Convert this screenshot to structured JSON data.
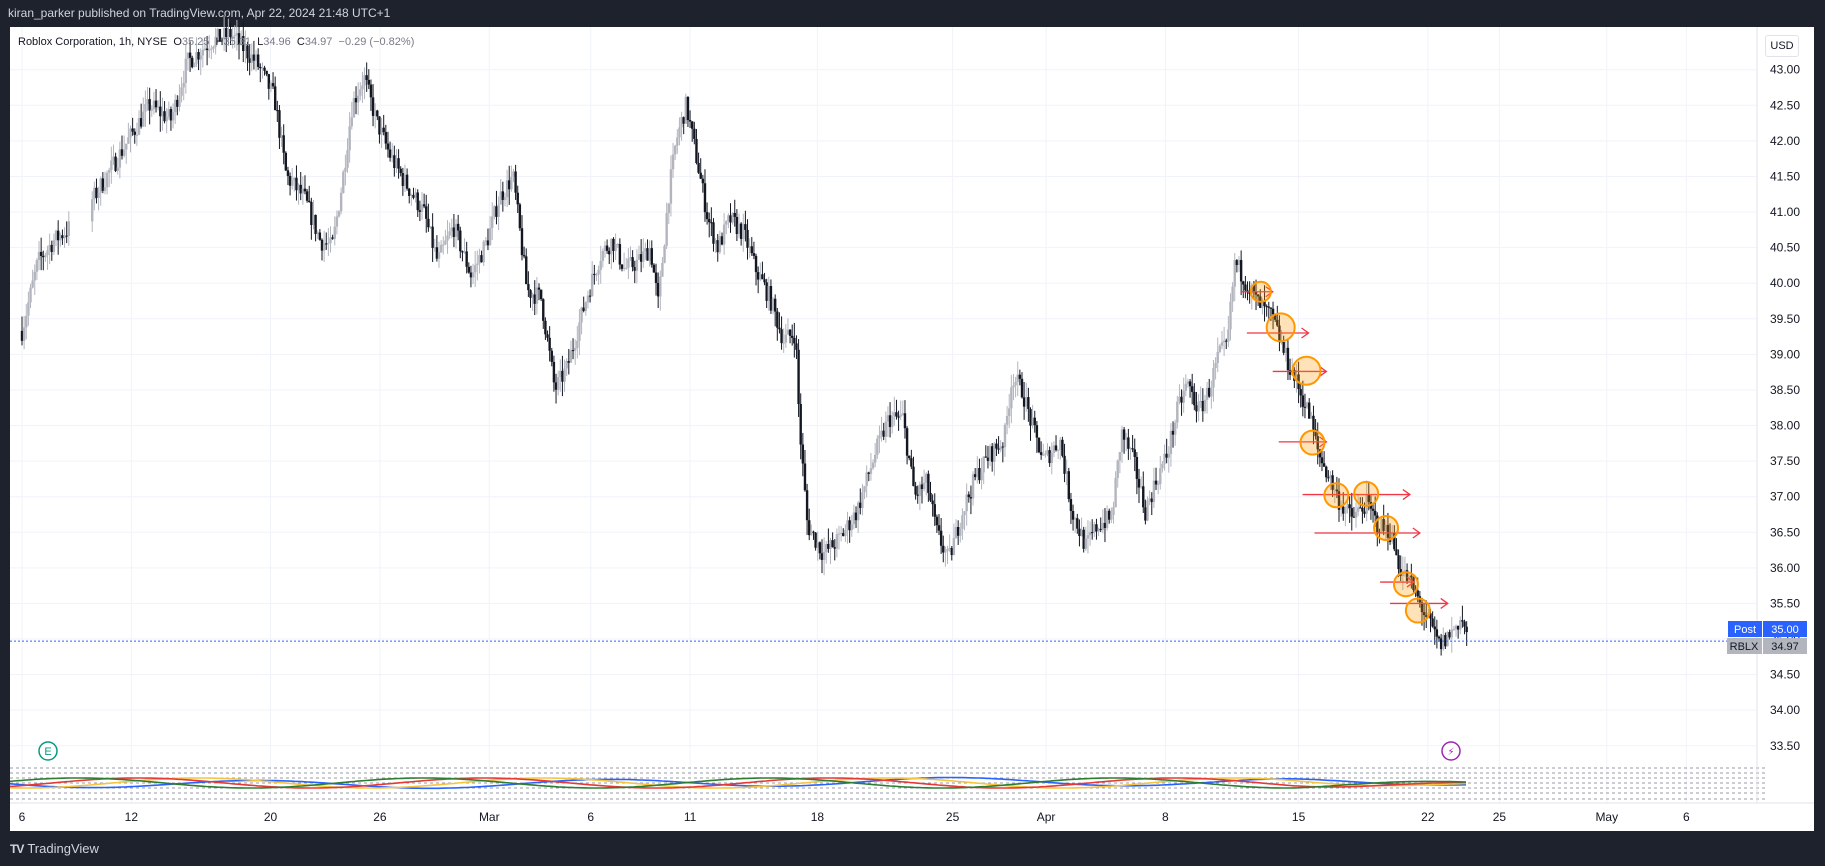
{
  "header": {
    "publisher": "kiran_parker published on TradingView.com, Apr 22, 2024 21:48 UTC+1"
  },
  "footer": {
    "brand": "TradingView"
  },
  "legend": {
    "symbol": "Roblox Corporation, 1h, NYSE",
    "o_label": "O",
    "o_value": "35.25",
    "h_label": "H",
    "h_value": "35.31",
    "l_label": "L",
    "l_value": "34.96",
    "c_label": "C",
    "c_value": "34.97",
    "change": "−0.29 (−0.82%)"
  },
  "currency": "USD",
  "badges": {
    "post_label": "Post",
    "post_value": "35.00",
    "ticker_label": "RBLX",
    "ticker_value": "34.97",
    "post_color": "#2962ff",
    "ticker_color": "#b2b5be"
  },
  "markers": {
    "earnings": "E",
    "dividend": "⚡"
  },
  "chart_data": {
    "type": "candlestick",
    "symbol": "RBLX",
    "interval": "1h",
    "ylim": [
      33.3,
      43.6
    ],
    "y_ticks": [
      "33.50",
      "34.00",
      "34.50",
      "35.00",
      "35.50",
      "36.00",
      "36.50",
      "37.00",
      "37.50",
      "38.00",
      "38.50",
      "39.00",
      "39.50",
      "40.00",
      "40.50",
      "41.00",
      "41.50",
      "42.00",
      "42.50",
      "43.00"
    ],
    "x_ticks": [
      "6",
      "12",
      "20",
      "26",
      "Mar",
      "6",
      "11",
      "18",
      "25",
      "Apr",
      "8",
      "15",
      "22",
      "25",
      "May",
      "6"
    ],
    "x_tick_index": [
      0,
      5.5,
      12.5,
      18,
      23.5,
      28.6,
      33.6,
      40,
      46.8,
      51.5,
      57.5,
      64.2,
      70.7,
      74.3,
      79.7,
      83.7
    ],
    "x_domain": [
      0,
      86.5
    ],
    "last_price": 34.97,
    "close_path": [
      [
        0,
        39.33
      ],
      [
        0.8,
        40.3
      ],
      [
        1.6,
        40.6
      ],
      [
        2.3,
        40.75
      ],
      [
        3.6,
        41.2
      ],
      [
        6.4,
        42.5
      ],
      [
        7.5,
        42.3
      ],
      [
        8.3,
        43.1
      ],
      [
        9.5,
        43.4
      ],
      [
        10.5,
        43.5
      ],
      [
        11.8,
        43.1
      ],
      [
        12.7,
        42.6
      ],
      [
        13.3,
        41.5
      ],
      [
        14.2,
        41.2
      ],
      [
        15.0,
        40.6
      ],
      [
        15.6,
        40.5
      ],
      [
        16.1,
        41.4
      ],
      [
        16.6,
        42.5
      ],
      [
        17.2,
        42.9
      ],
      [
        17.8,
        42.3
      ],
      [
        18.5,
        41.8
      ],
      [
        19.3,
        41.4
      ],
      [
        20.2,
        41.0
      ],
      [
        20.9,
        40.3
      ],
      [
        21.7,
        40.8
      ],
      [
        22.6,
        40.1
      ],
      [
        23.4,
        40.6
      ],
      [
        24.0,
        41.2
      ],
      [
        24.7,
        41.5
      ],
      [
        25.4,
        39.9
      ],
      [
        26.1,
        39.8
      ],
      [
        26.8,
        38.5
      ],
      [
        27.4,
        38.8
      ],
      [
        28.0,
        39.4
      ],
      [
        28.5,
        39.9
      ],
      [
        29.1,
        40.4
      ],
      [
        29.7,
        40.6
      ],
      [
        30.3,
        40.2
      ],
      [
        31.0,
        40.3
      ],
      [
        31.6,
        40.5
      ],
      [
        32.0,
        39.7
      ],
      [
        32.5,
        41.2
      ],
      [
        32.9,
        42.0
      ],
      [
        33.4,
        42.5
      ],
      [
        33.9,
        41.8
      ],
      [
        34.5,
        40.9
      ],
      [
        35.0,
        40.5
      ],
      [
        35.6,
        40.9
      ],
      [
        36.3,
        40.7
      ],
      [
        36.9,
        40.2
      ],
      [
        37.6,
        39.8
      ],
      [
        38.3,
        39.2
      ],
      [
        38.9,
        39.3
      ],
      [
        39.1,
        38.0
      ],
      [
        39.5,
        36.6
      ],
      [
        40.3,
        36.2
      ],
      [
        41.1,
        36.4
      ],
      [
        42.0,
        36.8
      ],
      [
        42.9,
        37.6
      ],
      [
        43.6,
        38.1
      ],
      [
        44.3,
        38.1
      ],
      [
        44.9,
        37.0
      ],
      [
        45.5,
        37.2
      ],
      [
        46.0,
        36.5
      ],
      [
        46.6,
        36.1
      ],
      [
        47.3,
        36.8
      ],
      [
        48.0,
        37.3
      ],
      [
        48.7,
        37.6
      ],
      [
        49.4,
        37.8
      ],
      [
        49.8,
        38.7
      ],
      [
        50.3,
        38.5
      ],
      [
        50.9,
        37.9
      ],
      [
        51.4,
        37.5
      ],
      [
        52.2,
        37.8
      ],
      [
        52.8,
        36.8
      ],
      [
        53.5,
        36.3
      ],
      [
        54.1,
        36.6
      ],
      [
        54.8,
        36.7
      ],
      [
        55.3,
        37.9
      ],
      [
        55.9,
        37.5
      ],
      [
        56.5,
        36.8
      ],
      [
        57.0,
        37.2
      ],
      [
        57.6,
        37.6
      ],
      [
        58.1,
        38.2
      ],
      [
        58.6,
        38.6
      ],
      [
        59.2,
        38.2
      ],
      [
        59.7,
        38.5
      ],
      [
        60.2,
        39.0
      ],
      [
        60.6,
        39.1
      ],
      [
        61.0,
        40.3
      ],
      [
        61.6,
        40.0
      ],
      [
        62.2,
        39.7
      ],
      [
        62.9,
        39.5
      ],
      [
        63.5,
        39.0
      ],
      [
        64.1,
        38.6
      ],
      [
        64.8,
        38.1
      ],
      [
        65.2,
        37.6
      ],
      [
        65.7,
        37.3
      ],
      [
        66.3,
        36.9
      ],
      [
        66.9,
        36.7
      ],
      [
        67.6,
        36.9
      ],
      [
        68.2,
        36.6
      ],
      [
        68.8,
        36.5
      ],
      [
        69.3,
        36.0
      ],
      [
        69.8,
        35.8
      ],
      [
        70.3,
        35.5
      ],
      [
        70.8,
        35.2
      ],
      [
        71.3,
        34.9
      ],
      [
        71.9,
        35.1
      ],
      [
        72.4,
        35.3
      ],
      [
        72.7,
        34.97
      ]
    ],
    "annotations": {
      "circles": [
        [
          62.3,
          39.88
        ],
        [
          63.3,
          39.38
        ],
        [
          64.6,
          38.77
        ],
        [
          64.9,
          37.76
        ],
        [
          66.1,
          37.02
        ],
        [
          67.6,
          37.04
        ],
        [
          68.6,
          36.56
        ],
        [
          69.6,
          35.77
        ],
        [
          70.2,
          35.4
        ]
      ],
      "arrows": [
        [
          61.3,
          62.9,
          39.88
        ],
        [
          61.6,
          64.7,
          39.3
        ],
        [
          62.9,
          65.6,
          38.76
        ],
        [
          63.2,
          65.6,
          37.77
        ],
        [
          64.4,
          69.8,
          37.03
        ],
        [
          65.0,
          70.3,
          36.49
        ],
        [
          68.3,
          70.0,
          35.8
        ],
        [
          68.8,
          71.7,
          35.5
        ]
      ]
    },
    "indicator": {
      "type": "line",
      "series": [
        "ribbon-blue",
        "ribbon-yellow",
        "ribbon-red",
        "ribbon-green"
      ],
      "colors": [
        "#2962ff",
        "#f5c542",
        "#e53935",
        "#2e7d32"
      ]
    }
  }
}
